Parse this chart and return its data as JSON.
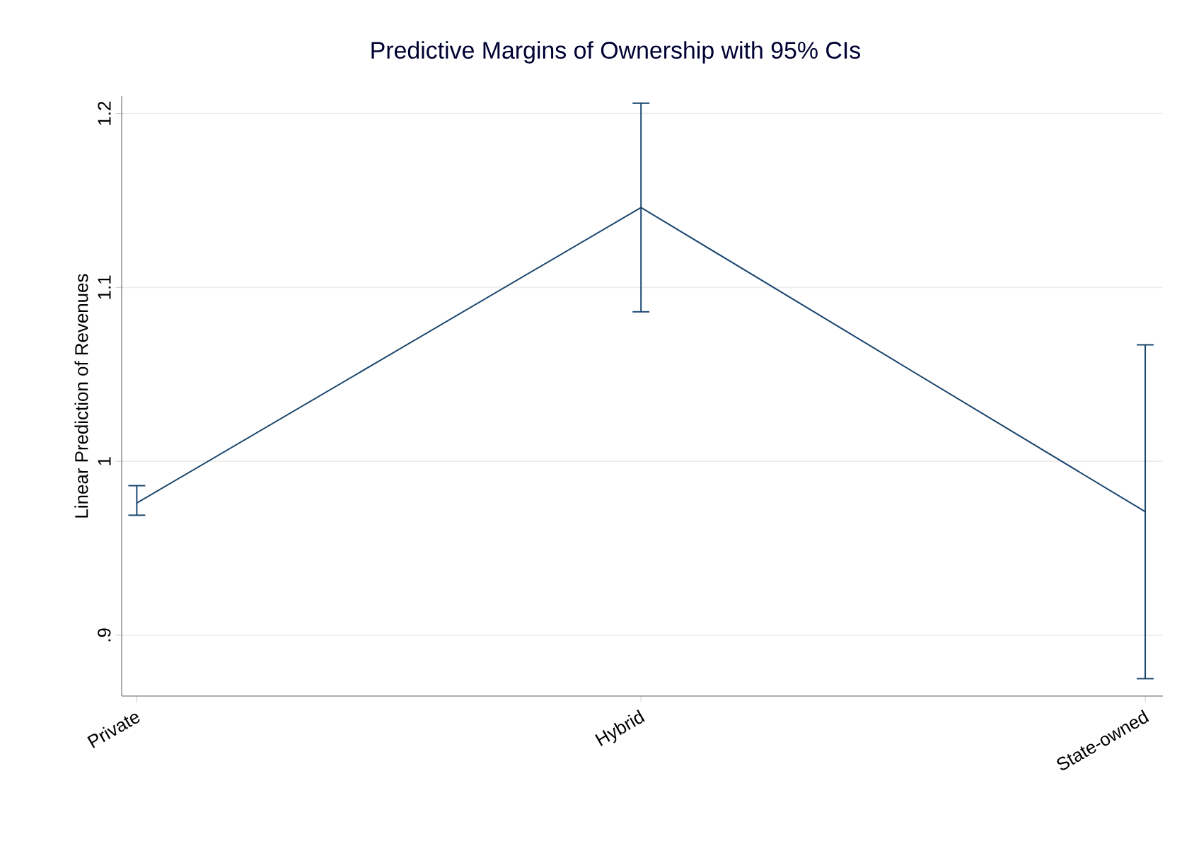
{
  "chart_data": {
    "type": "line",
    "title": "Predictive Margins of Ownership with 95% CIs",
    "ylabel": "Linear Prediction of Revenues",
    "categories": [
      "Private",
      "Hybrid",
      "State-owned"
    ],
    "series": [
      {
        "color": "#1a476f",
        "values": [
          0.976,
          1.146,
          0.971
        ],
        "errors": [
          [
            0.969,
            0.986
          ],
          [
            1.086,
            1.206
          ],
          [
            0.875,
            1.067
          ]
        ]
      }
    ],
    "ylim": [
      0.865,
      1.21
    ],
    "yticks": [
      {
        "value": 0.9,
        "label": ".9"
      },
      1,
      1.1,
      1.2
    ],
    "grid": "y",
    "marker": "none",
    "line_style": "solid"
  }
}
